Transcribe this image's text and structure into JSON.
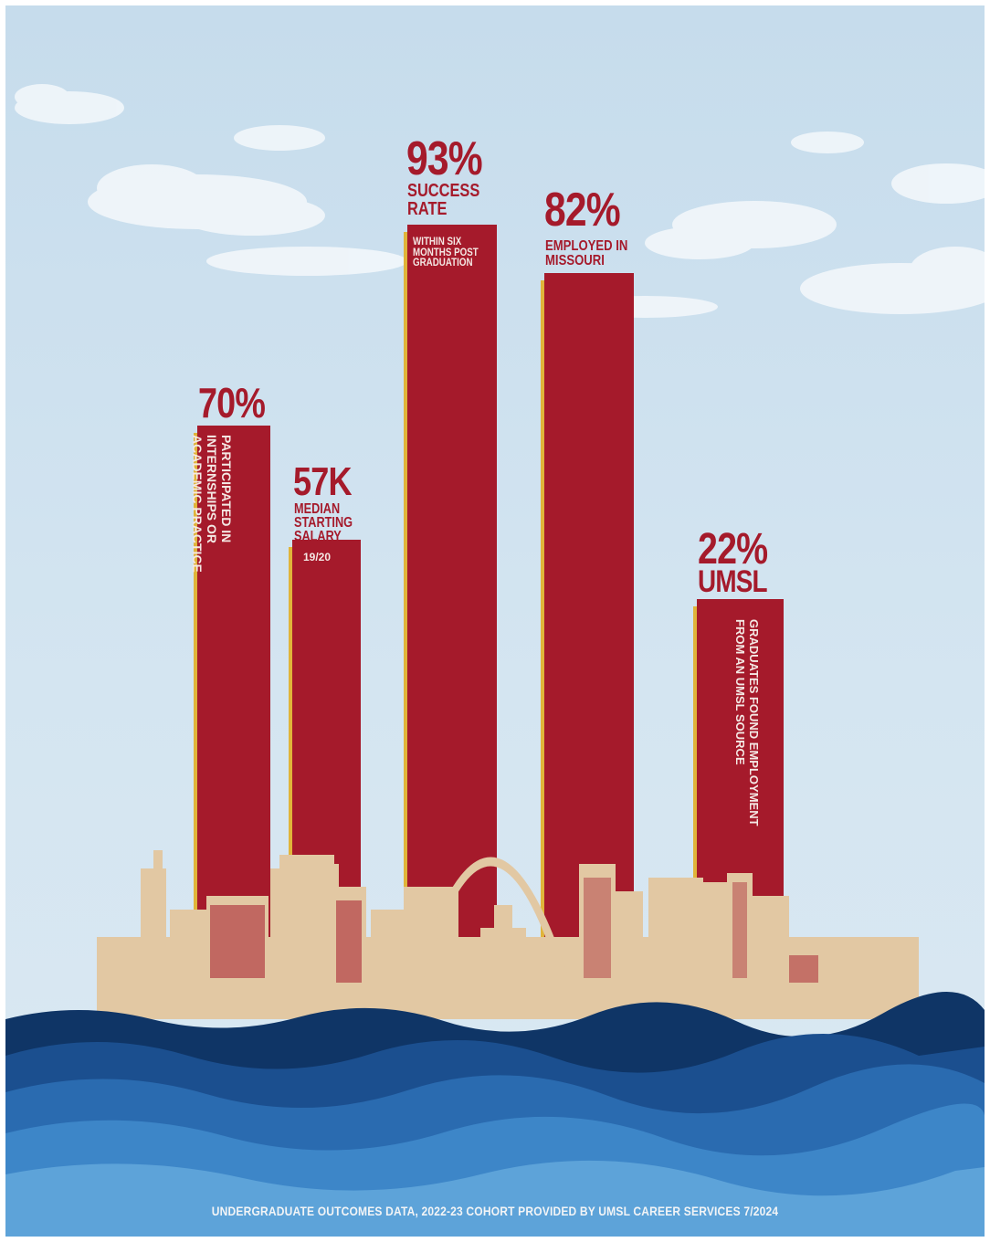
{
  "chart_data": {
    "type": "bar",
    "bars": [
      {
        "value_label": "70%",
        "label": "Participated in Internships or Academic Practice"
      },
      {
        "value_label": "57K",
        "label": "Median Starting Salary",
        "note": "19/20"
      },
      {
        "value_label": "93%",
        "label": "Success Rate",
        "note": "Within six months post graduation"
      },
      {
        "value_label": "82%",
        "label": "Employed in Missouri"
      },
      {
        "value_label": "22%",
        "label": "UMSL",
        "note": "Graduates found employment from an UMSL source"
      }
    ],
    "footer": "UNDERGRADUATE OUTCOMES DATA, 2022-23 COHORT PROVIDED BY UMSL CAREER SERVICES 7/2024"
  },
  "colors": {
    "bar": "#a51a2b",
    "bar_edge": "#e0b43a",
    "sky": "#cfe1ef",
    "skyline": "#e3c9a4",
    "water": [
      "#0f3566",
      "#1b4f8f",
      "#2a6bb0",
      "#3d86c8",
      "#5da3d9"
    ]
  }
}
